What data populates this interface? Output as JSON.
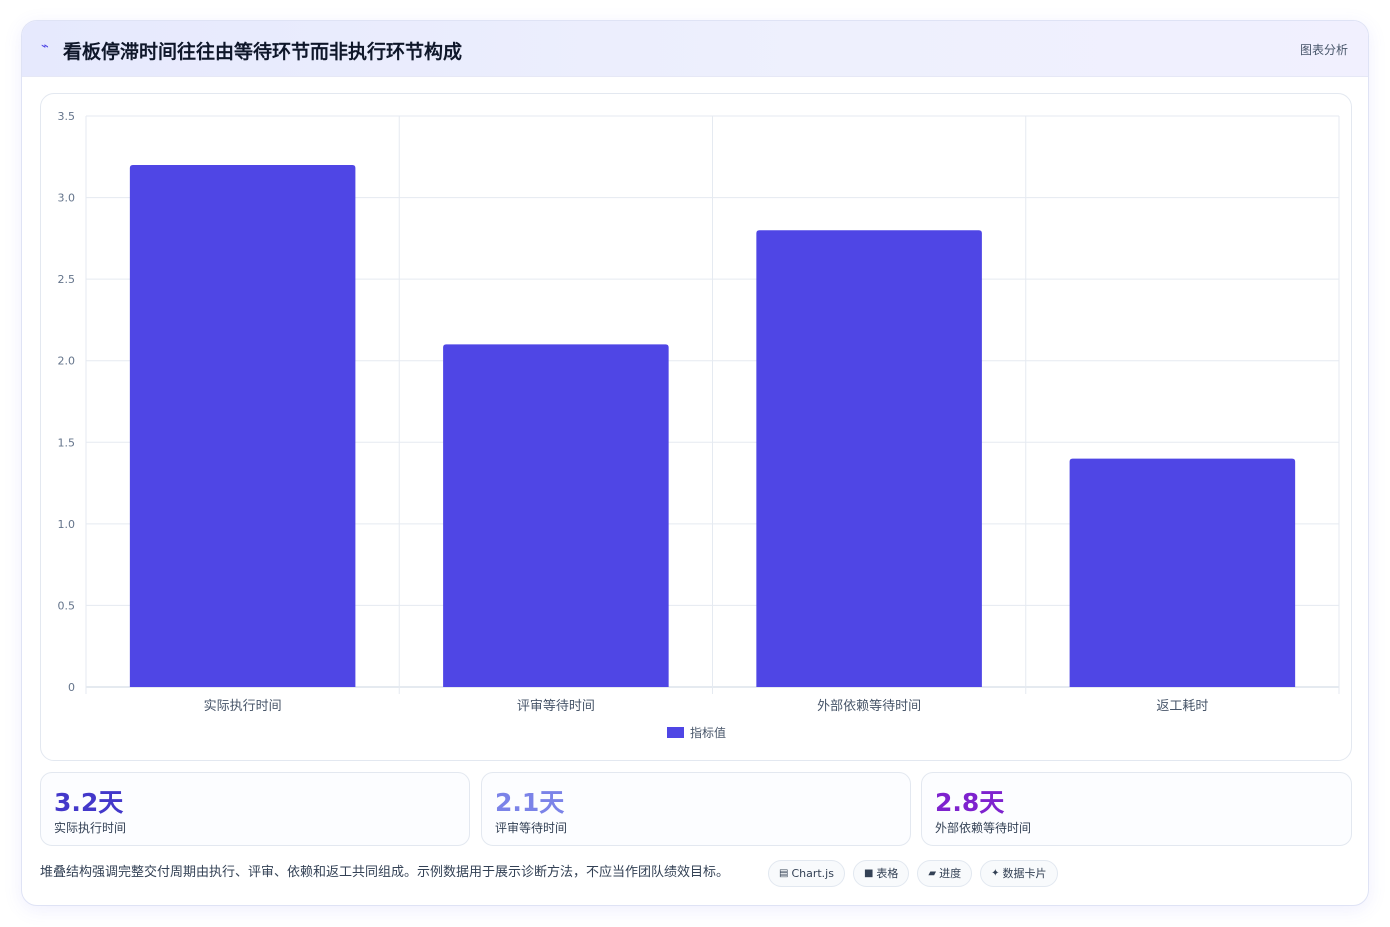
{
  "header": {
    "icon": "trend-line-icon",
    "title": "看板停滞时间往往由等待环节而非执行环节构成",
    "tag": "图表分析"
  },
  "chart_data": {
    "type": "bar",
    "categories": [
      "实际执行时间",
      "评审等待时间",
      "外部依赖等待时间",
      "返工耗时"
    ],
    "series": [
      {
        "name": "指标值",
        "values": [
          3.2,
          2.1,
          2.8,
          1.4
        ],
        "color": "#4f46e5"
      }
    ],
    "ylim": [
      0,
      3.5
    ],
    "yticks": [
      "0",
      "0.5",
      "1.0",
      "1.5",
      "2.0",
      "2.5",
      "3.0",
      "3.5"
    ],
    "grid": true,
    "legend_position": "bottom"
  },
  "stats": [
    {
      "value": "3.2天",
      "label": "实际执行时间",
      "color": "#4338ca"
    },
    {
      "value": "2.1天",
      "label": "评审等待时间",
      "color": "#7b83e8"
    },
    {
      "value": "2.8天",
      "label": "外部依赖等待时间",
      "color": "#7e22ce"
    }
  ],
  "note": "堆叠结构强调完整交付周期由执行、评审、依赖和返工共同组成。示例数据用于展示诊断方法，不应当作团队绩效目标。",
  "chips": [
    {
      "icon": "▤",
      "icon_name": "chart-js-icon",
      "label": "Chart.js"
    },
    {
      "icon": "■",
      "icon_name": "table-icon",
      "label": "表格"
    },
    {
      "icon": "▰",
      "icon_name": "progress-icon",
      "label": "进度"
    },
    {
      "icon": "✦",
      "icon_name": "data-card-icon",
      "label": "数据卡片"
    }
  ]
}
